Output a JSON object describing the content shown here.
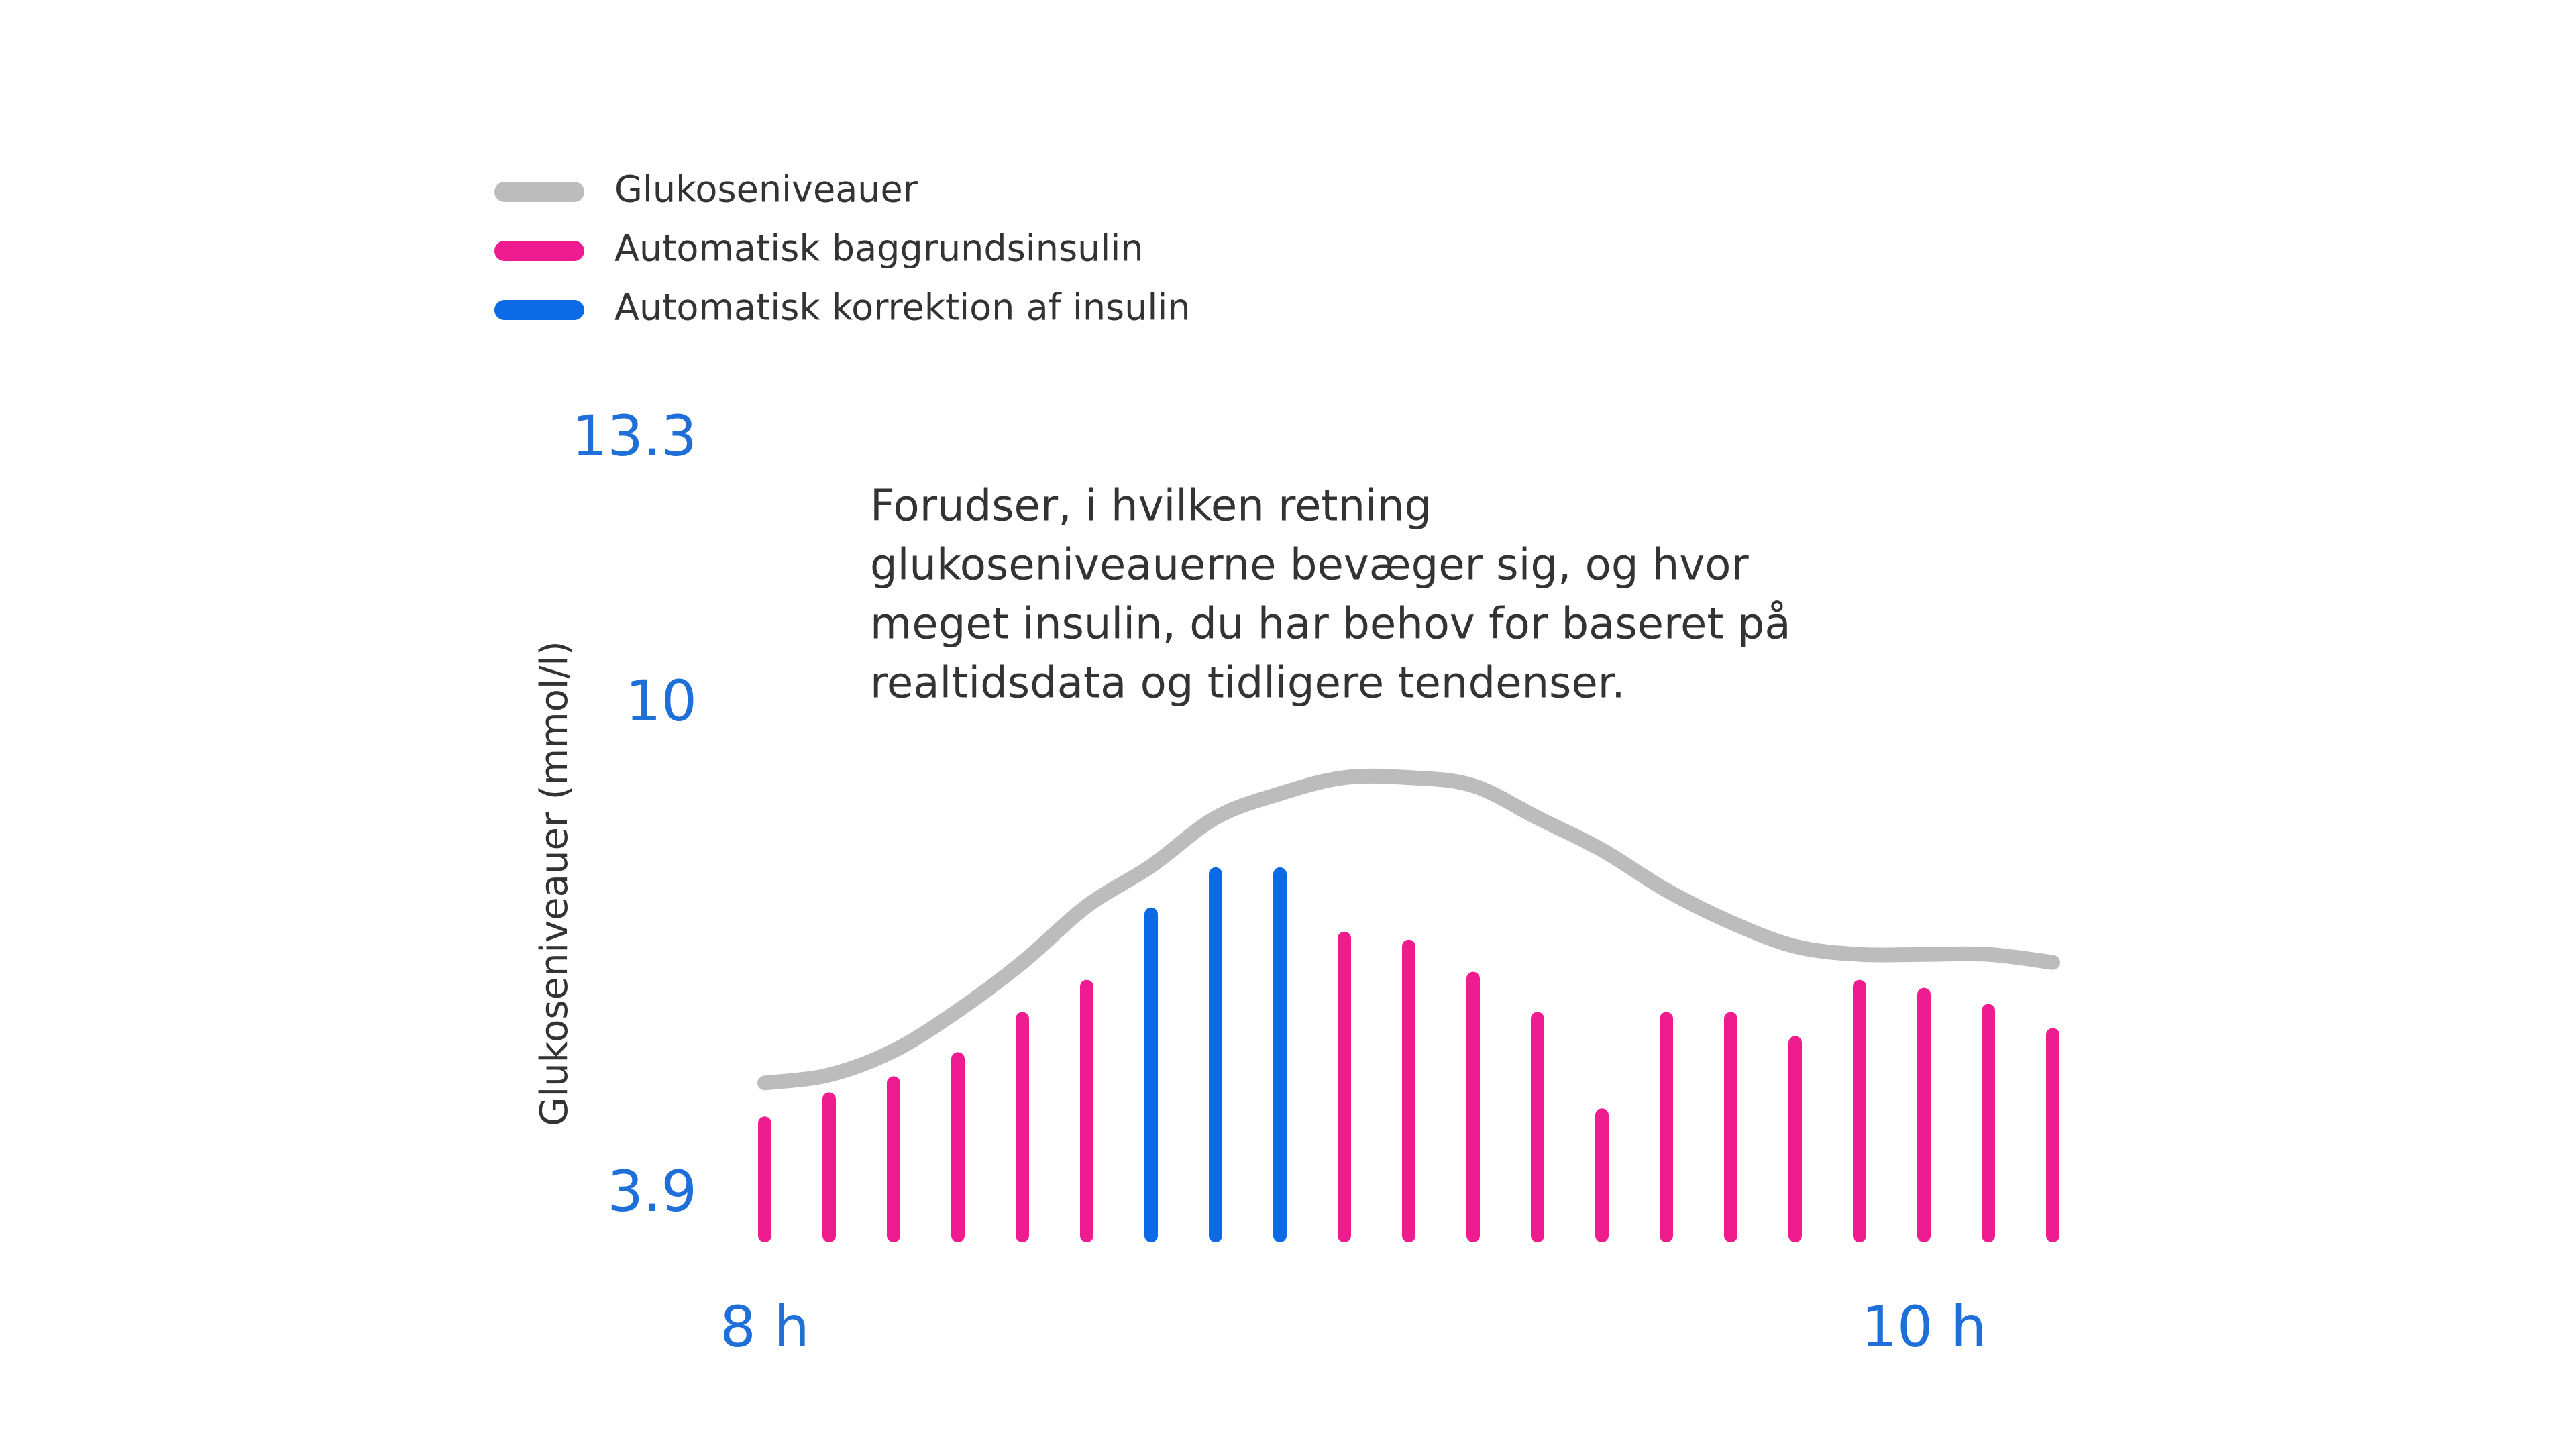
{
  "chart_data": {
    "type": "combo",
    "y_axis_label": "Glukoseniveauer (mmol/l)",
    "annotation": [
      "Forudser, i hvilken retning",
      "glukoseniveauerne bevæger sig, og hvor",
      "meget insulin, du har behov for baseret på",
      "realtidsdata og tidligere tendenser."
    ],
    "categories": [
      "8 h",
      null,
      null,
      null,
      null,
      null,
      null,
      null,
      null,
      null,
      null,
      null,
      null,
      null,
      null,
      null,
      null,
      null,
      "10 h",
      null,
      null
    ],
    "series": [
      {
        "name": "Glukoseniveauer",
        "type": "line",
        "color": "#bcbcbc",
        "values": [
          5.3,
          5.4,
          5.7,
          6.2,
          6.8,
          7.5,
          8.0,
          8.6,
          8.9,
          9.1,
          9.1,
          9.0,
          8.6,
          8.2,
          7.7,
          7.3,
          7.0,
          6.9,
          6.9,
          6.9,
          6.8
        ]
      },
      {
        "name": "Automatisk baggrundsinsulin",
        "type": "bar",
        "color": "#ee1c8f",
        "values": [
          4.8,
          5.1,
          5.3,
          5.6,
          6.1,
          6.5,
          null,
          null,
          null,
          7.1,
          7.0,
          6.6,
          6.1,
          4.9,
          6.1,
          6.1,
          5.8,
          6.5,
          6.4,
          6.2,
          5.9
        ]
      },
      {
        "name": "Automatisk korrektion af insulin",
        "type": "bar",
        "color": "#0b6ae6",
        "values": [
          null,
          null,
          null,
          null,
          null,
          null,
          7.4,
          7.9,
          7.9,
          null,
          null,
          null,
          null,
          null,
          null,
          null,
          null,
          null,
          null,
          null,
          null
        ]
      }
    ],
    "ylim": [
      3.4,
      13.5
    ],
    "yticks": [
      3.9,
      10,
      13.3
    ],
    "tick_color": "#1f6fd8"
  }
}
